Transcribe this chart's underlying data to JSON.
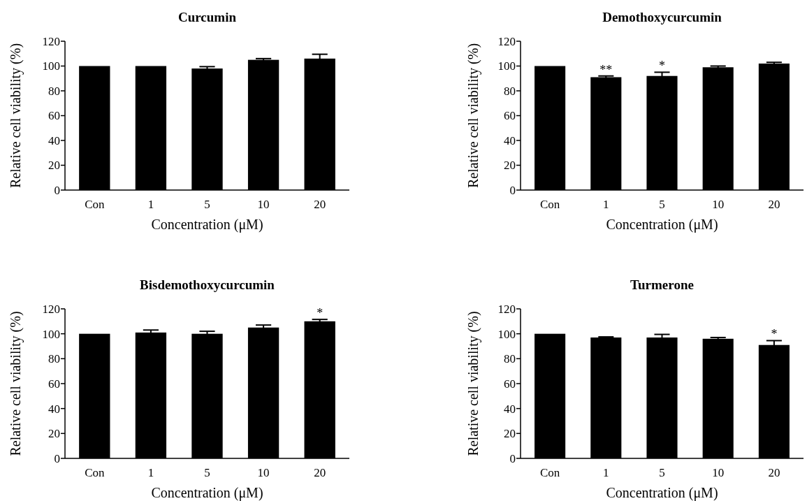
{
  "chart_data": [
    {
      "type": "bar",
      "title": "Curcumin",
      "xlabel": "Concentration (μM)",
      "ylabel": "Relative cell viability (%)",
      "categories": [
        "Con",
        "1",
        "5",
        "10",
        "20"
      ],
      "values": [
        100,
        100,
        98,
        105,
        106
      ],
      "errors": [
        null,
        null,
        1.5,
        1,
        3.5
      ],
      "color": "#000000",
      "ylim": [
        0,
        120
      ],
      "yticks": [
        0,
        20,
        40,
        60,
        80,
        100,
        120
      ]
    },
    {
      "type": "bar",
      "title": "Demothoxycurcumin",
      "xlabel": "Concentration (μM)",
      "ylabel": "Relative cell viability (%)",
      "categories": [
        "Con",
        "1",
        "5",
        "10",
        "20"
      ],
      "values": [
        100,
        91,
        92,
        99,
        102
      ],
      "errors": [
        null,
        1,
        3,
        1,
        1
      ],
      "color": "#000000",
      "ylim": [
        0,
        120
      ],
      "yticks": [
        0,
        20,
        40,
        60,
        80,
        100,
        120
      ],
      "annotations": [
        {
          "text": "**",
          "x": "1",
          "y": 92
        },
        {
          "text": "*",
          "x": "5",
          "y": 95
        }
      ]
    },
    {
      "type": "bar",
      "title": "Bisdemothoxycurcumin",
      "xlabel": "Concentration (μM)",
      "ylabel": "Relative cell viability (%)",
      "categories": [
        "Con",
        "1",
        "5",
        "10",
        "20"
      ],
      "values": [
        100,
        101,
        100,
        105,
        110
      ],
      "errors": [
        null,
        2,
        2,
        2,
        1.5
      ],
      "color": "#000000",
      "ylim": [
        0,
        120
      ],
      "yticks": [
        0,
        20,
        40,
        60,
        80,
        100,
        120
      ],
      "annotations": [
        {
          "text": "*",
          "x": "20",
          "y": 111.5
        }
      ]
    },
    {
      "type": "bar",
      "title": "Turmerone",
      "xlabel": "Concentration (μM)",
      "ylabel": "Relative cell viability (%)",
      "categories": [
        "Con",
        "1",
        "5",
        "10",
        "20"
      ],
      "values": [
        100,
        97,
        97,
        96,
        91
      ],
      "errors": [
        null,
        0.5,
        2.5,
        1,
        3.5
      ],
      "color": "#000000",
      "ylim": [
        0,
        120
      ],
      "yticks": [
        0,
        20,
        40,
        60,
        80,
        100,
        120
      ],
      "annotations": [
        {
          "text": "*",
          "x": "20",
          "y": 94.5
        }
      ]
    }
  ]
}
